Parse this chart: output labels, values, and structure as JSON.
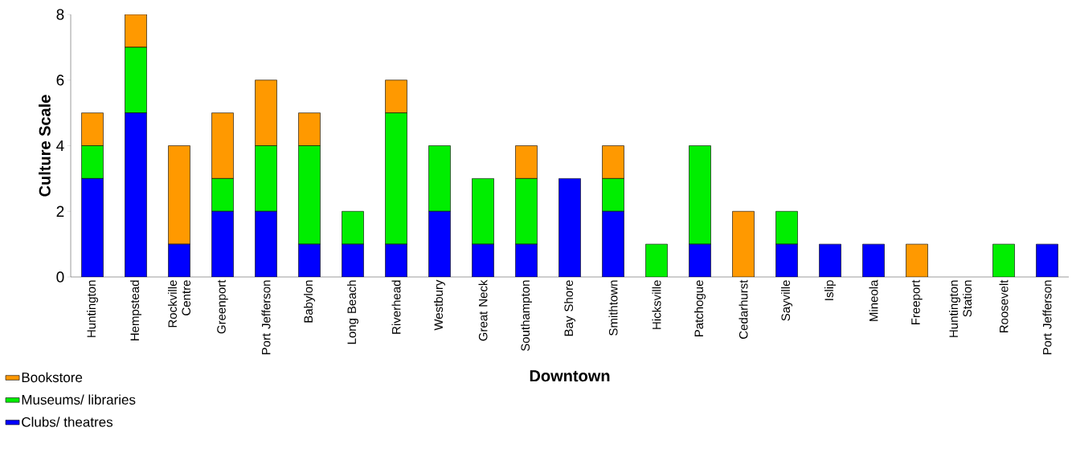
{
  "chart_data": {
    "type": "bar",
    "stacked": true,
    "xlabel": "Downtown",
    "ylabel": "Culture Scale",
    "categories": [
      "Huntington",
      "Hempstead",
      "Rockville Centre",
      "Greenport",
      "Port Jefferson",
      "Babylon",
      "Long Beach",
      "Riverhead",
      "Westbury",
      "Great Neck",
      "Southampton",
      "Bay Shore",
      "Smithtown",
      "Hicksville",
      "Patchogue",
      "Cedarhurst",
      "Sayville",
      "Islip",
      "Mineola",
      "Freeport",
      "Huntington Station",
      "Roosevelt",
      "Port Jefferson"
    ],
    "series": [
      {
        "name": "Clubs/ theatres",
        "color": "#0000ff",
        "values": [
          3,
          5,
          1,
          2,
          2,
          1,
          1,
          1,
          2,
          1,
          1,
          3,
          2,
          0,
          1,
          0,
          1,
          1,
          1,
          0,
          0,
          0,
          1
        ]
      },
      {
        "name": "Museums/ libraries",
        "color": "#00ee00",
        "values": [
          1,
          2,
          0,
          1,
          2,
          3,
          1,
          4,
          2,
          2,
          2,
          0,
          1,
          1,
          3,
          0,
          1,
          0,
          0,
          0,
          0,
          1,
          0
        ]
      },
      {
        "name": "Bookstore",
        "color": "#ff9900",
        "values": [
          1,
          1,
          3,
          2,
          2,
          1,
          0,
          1,
          0,
          0,
          1,
          0,
          1,
          0,
          0,
          2,
          0,
          0,
          0,
          1,
          0,
          0,
          0
        ]
      }
    ],
    "ylim": [
      0,
      8
    ],
    "yticks": [
      0,
      2,
      4,
      6,
      8
    ],
    "grid": false,
    "legend": "bottom left"
  }
}
